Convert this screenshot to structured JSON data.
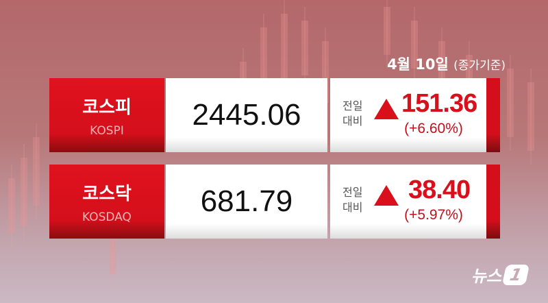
{
  "date": {
    "main": "4월 10일",
    "note": "(종가기준)"
  },
  "change_label": [
    "전일",
    "대비"
  ],
  "indices": [
    {
      "name": "코스피",
      "name_en": "KOSPI",
      "value": "2445.06",
      "change": "151.36",
      "change_pct": "(+6.60%)",
      "direction": "up"
    },
    {
      "name": "코스닥",
      "name_en": "KOSDAQ",
      "value": "681.79",
      "change": "38.40",
      "change_pct": "(+5.97%)",
      "direction": "up"
    }
  ],
  "logo": {
    "text": "뉴스",
    "mark": "1"
  },
  "colors": {
    "accent": "#d9101c"
  }
}
